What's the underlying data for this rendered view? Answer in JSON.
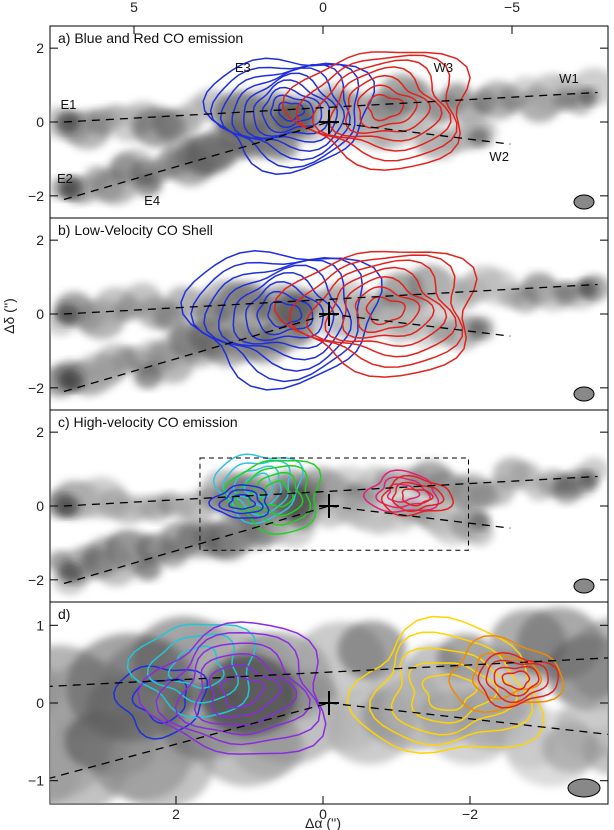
{
  "chart_data": {
    "type": "contour",
    "x_axis": {
      "label": "Δα ('')",
      "top_ticks": [
        "5",
        "0",
        "−5"
      ],
      "bottom_ticks": [
        "2",
        "0",
        "−2"
      ]
    },
    "y_axis": {
      "label": "Δδ ('')"
    },
    "panels": [
      {
        "id": "a",
        "title": "a) Blue and Red CO emission",
        "xlim": [
          8.0,
          -8.0
        ],
        "ylim": [
          -2.6,
          2.6
        ],
        "yticks": [
          "2",
          "0",
          "−2"
        ],
        "labels": [
          {
            "text": "E1",
            "x": 7.7,
            "y": 0.35
          },
          {
            "text": "E2",
            "x": 7.8,
            "y": -1.65
          },
          {
            "text": "E3",
            "x": 2.7,
            "y": 1.35
          },
          {
            "text": "E4",
            "x": 5.3,
            "y": -2.25
          },
          {
            "text": "W3",
            "x": -3.0,
            "y": 1.35
          },
          {
            "text": "W1",
            "x": -6.6,
            "y": 1.05
          },
          {
            "text": "W2",
            "x": -4.6,
            "y": -1.05
          }
        ],
        "contour_sets": [
          {
            "color": "#1f2fdc",
            "cx": 1.1,
            "cy": 0.3,
            "rx": 2.3,
            "ry": 1.5,
            "levels": 9
          },
          {
            "color": "#e4221c",
            "cx": -1.6,
            "cy": 0.4,
            "rx": 2.5,
            "ry": 1.6,
            "levels": 7
          }
        ]
      },
      {
        "id": "b",
        "title": "b) Low-Velocity CO Shell",
        "xlim": [
          8.0,
          -8.0
        ],
        "ylim": [
          -2.6,
          2.6
        ],
        "yticks": [
          "2",
          "0",
          "−2"
        ],
        "labels": [],
        "contour_sets": [
          {
            "color": "#1f2fdc",
            "cx": 1.3,
            "cy": 0.0,
            "rx": 2.7,
            "ry": 1.8,
            "levels": 8
          },
          {
            "color": "#e4221c",
            "cx": -1.6,
            "cy": 0.1,
            "rx": 2.7,
            "ry": 1.7,
            "levels": 7
          }
        ]
      },
      {
        "id": "c",
        "title": "c) High-velocity CO emission",
        "xlim": [
          8.0,
          -8.0
        ],
        "ylim": [
          -2.6,
          2.6
        ],
        "yticks": [
          "2",
          "0",
          "−2"
        ],
        "labels": [],
        "contour_sets": [
          {
            "color": "#2ec4e0",
            "cx": 2.0,
            "cy": 0.55,
            "rx": 1.2,
            "ry": 0.9,
            "levels": 4
          },
          {
            "color": "#20d020",
            "cx": 1.5,
            "cy": 0.3,
            "rx": 1.3,
            "ry": 1.0,
            "levels": 4
          },
          {
            "color": "#1f2fdc",
            "cx": 2.5,
            "cy": 0.1,
            "rx": 0.8,
            "ry": 0.45,
            "levels": 3
          },
          {
            "color": "#e0207a",
            "cx": -2.1,
            "cy": 0.35,
            "rx": 1.0,
            "ry": 0.55,
            "levels": 3
          },
          {
            "color": "#e4221c",
            "cx": -2.5,
            "cy": 0.25,
            "rx": 1.0,
            "ry": 0.5,
            "levels": 3
          }
        ]
      },
      {
        "id": "d",
        "title": "d)",
        "xlim": [
          3.5,
          -3.5
        ],
        "ylim": [
          -1.3,
          1.3
        ],
        "yticks": [
          "1",
          "0",
          "−1"
        ],
        "labels": [],
        "contour_sets": [
          {
            "color": "#1f2fdc",
            "cx": 2.1,
            "cy": 0.05,
            "rx": 0.55,
            "ry": 0.45,
            "levels": 2
          },
          {
            "color": "#22c6d8",
            "cx": 1.65,
            "cy": 0.45,
            "rx": 0.75,
            "ry": 0.6,
            "levels": 3
          },
          {
            "color": "#8a2be2",
            "cx": 1.1,
            "cy": 0.15,
            "rx": 1.1,
            "ry": 0.85,
            "levels": 6
          },
          {
            "color": "#ffd400",
            "cx": -1.5,
            "cy": 0.15,
            "rx": 1.15,
            "ry": 0.85,
            "levels": 5
          },
          {
            "color": "#f08a00",
            "cx": -2.2,
            "cy": 0.35,
            "rx": 0.7,
            "ry": 0.45,
            "levels": 2
          },
          {
            "color": "#e4221c",
            "cx": -2.35,
            "cy": 0.3,
            "rx": 0.5,
            "ry": 0.32,
            "levels": 4
          }
        ]
      }
    ]
  }
}
